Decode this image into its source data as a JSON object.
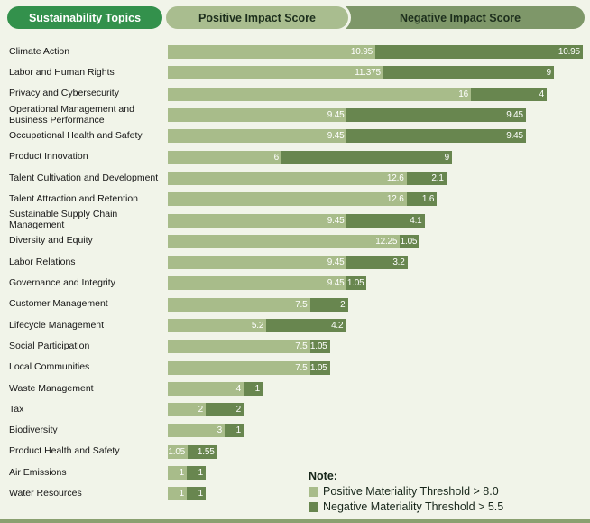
{
  "header": {
    "topics_label": "Sustainability Topics",
    "positive_label": "Positive Impact Score",
    "negative_label": "Negative Impact Score"
  },
  "note": {
    "title": "Note:",
    "legend": [
      {
        "label": "Positive Materiality Threshold > 8.0",
        "color": "#a8bc8a"
      },
      {
        "label": "Negative Materiality Threshold > 5.5",
        "color": "#68864f"
      }
    ]
  },
  "colors": {
    "background": "#f1f4e9",
    "positive_bar": "#a8bc8a",
    "negative_bar": "#68864f",
    "topics_header": "#33914c",
    "positive_header": "#a9bd8f",
    "negative_header": "#7e9769",
    "value_text": "#ffffff"
  },
  "chart_data": {
    "type": "bar",
    "orientation": "horizontal",
    "stacked": true,
    "legend_position": "bottom-right",
    "grid": false,
    "xlim": [
      0,
      22
    ],
    "categories": [
      "Climate Action",
      "Labor and Human Rights",
      "Privacy and Cybersecurity",
      "Operational Management and Business Performance",
      "Occupational Health and Safety",
      "Product Innovation",
      "Talent Cultivation and Development",
      "Talent Attraction and Retention",
      "Sustainable Supply Chain Management",
      "Diversity and Equity",
      "Labor Relations",
      "Governance and Integrity",
      "Customer Management",
      "Lifecycle Management",
      "Social Participation",
      "Local Communities",
      "Waste Management",
      "Tax",
      "Biodiversity",
      "Product Health and Safety",
      "Air Emissions",
      "Water Resources"
    ],
    "series": [
      {
        "name": "Positive Impact Score",
        "color": "#a8bc8a",
        "values": [
          10.95,
          11.375,
          16,
          9.45,
          9.45,
          6,
          12.6,
          12.6,
          9.45,
          12.25,
          9.45,
          9.45,
          7.5,
          5.2,
          7.5,
          7.5,
          4,
          2,
          3,
          1.05,
          1,
          1
        ]
      },
      {
        "name": "Negative Impact Score",
        "color": "#68864f",
        "values": [
          10.95,
          9,
          4,
          9.45,
          9.45,
          9,
          2.1,
          1.6,
          4.1,
          1.05,
          3.2,
          1.05,
          2,
          4.2,
          1.05,
          1.05,
          1,
          2,
          1,
          1.55,
          1,
          1
        ]
      }
    ]
  }
}
